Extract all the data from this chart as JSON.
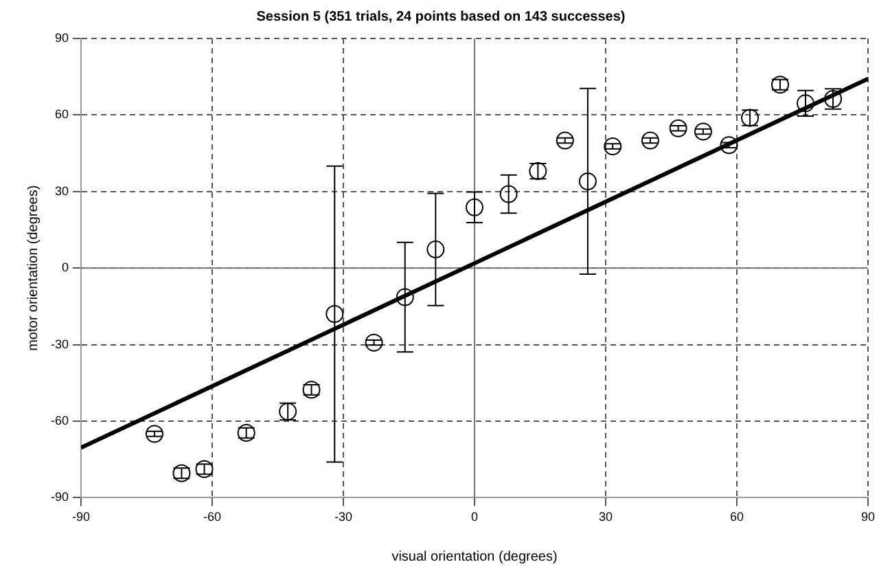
{
  "chart_data": {
    "type": "scatter",
    "title": "Session 5 (351 trials, 24 points based on 143 successes)",
    "xlabel": "visual orientation (degrees)",
    "ylabel": "motor orientation (degrees)",
    "xlim": [
      -90,
      90
    ],
    "ylim": [
      -90,
      90
    ],
    "xticks": [
      -90,
      -60,
      -30,
      0,
      30,
      60,
      90
    ],
    "yticks": [
      -90,
      -60,
      -30,
      0,
      30,
      60,
      90
    ],
    "grid": true,
    "legend": false,
    "marker": "circle",
    "series": [
      {
        "type": "scatter",
        "color": "#000000",
        "x": [
          -73.2,
          -67,
          -61.8,
          -52.2,
          -42.7,
          -37.3,
          -32,
          -23,
          -15.9,
          -8.9,
          0,
          7.8,
          14.5,
          20.7,
          25.9,
          31.6,
          40.2,
          46.6,
          52.3,
          58.2,
          63,
          69.9,
          75.7,
          82
        ],
        "values": [
          -65,
          -80.4,
          -78.8,
          -64.6,
          -56.2,
          -47.7,
          -18,
          -29.2,
          -11.4,
          7.3,
          23.8,
          29,
          38,
          50,
          34,
          47.7,
          50,
          54.8,
          53.5,
          48.2,
          58.9,
          71.9,
          64.6,
          66.3
        ],
        "errors": [
          1,
          2,
          2,
          2,
          3.3,
          2,
          58,
          1,
          21.5,
          22,
          6,
          7.5,
          3,
          1,
          36.4,
          1,
          1,
          1,
          1,
          1,
          3,
          2,
          5,
          4
        ]
      },
      {
        "type": "line",
        "color": "#000000",
        "marker": "none",
        "line_style": "solid",
        "x": [
          -90,
          90
        ],
        "values": [
          -70.4,
          74.2
        ]
      }
    ]
  }
}
